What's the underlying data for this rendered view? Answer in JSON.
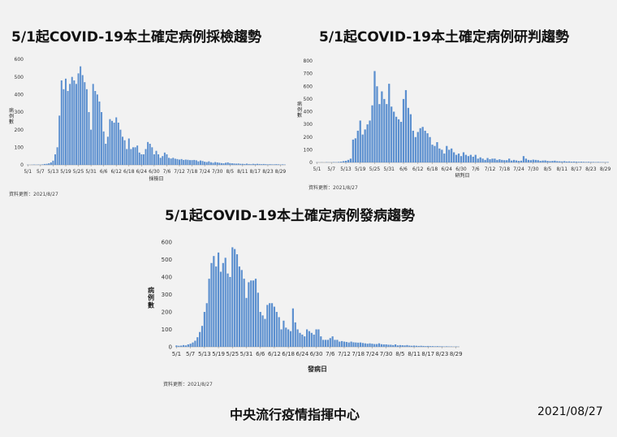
{
  "footer": {
    "organization": "中央流行疫情指揮中心",
    "date": "2021/08/27"
  },
  "chart_data": [
    {
      "type": "bar",
      "title": "5/1起COVID-19本土確定病例採檢趨勢",
      "xlabel": "採檢日",
      "ylabel": "病例數",
      "source": "資料更新：2021/8/27",
      "ylim": [
        0,
        600
      ],
      "yticks": [
        0,
        100,
        200,
        300,
        400,
        500,
        600
      ],
      "start_date": "2021-05-01",
      "tick_labels": [
        "5/1",
        "5/7",
        "5/13",
        "5/19",
        "5/25",
        "5/31",
        "6/6",
        "6/12",
        "6/18",
        "6/24",
        "6/30",
        "7/6",
        "7/12",
        "7/18",
        "7/24",
        "7/30",
        "8/5",
        "8/11",
        "8/17",
        "8/23",
        "8/29"
      ],
      "values": [
        1,
        0,
        1,
        2,
        1,
        2,
        1,
        3,
        5,
        6,
        9,
        14,
        24,
        60,
        100,
        280,
        480,
        430,
        490,
        420,
        460,
        500,
        480,
        460,
        520,
        560,
        510,
        470,
        430,
        300,
        200,
        460,
        420,
        400,
        360,
        300,
        190,
        120,
        160,
        260,
        250,
        240,
        270,
        240,
        200,
        160,
        140,
        90,
        150,
        90,
        100,
        100,
        110,
        70,
        60,
        60,
        90,
        130,
        120,
        100,
        60,
        80,
        60,
        40,
        50,
        70,
        60,
        40,
        36,
        40,
        35,
        33,
        30,
        33,
        28,
        30,
        29,
        27,
        27,
        28,
        26,
        20,
        25,
        22,
        18,
        16,
        20,
        15,
        12,
        16,
        14,
        12,
        10,
        9,
        12,
        14,
        10,
        9,
        8,
        7,
        8,
        6,
        6,
        5,
        7,
        5,
        4,
        6,
        5,
        6,
        5,
        4,
        5,
        4,
        3,
        4,
        3,
        3,
        4,
        3,
        2,
        3,
        2
      ]
    },
    {
      "type": "bar",
      "title": "5/1起COVID-19本土確定病例研判趨勢",
      "xlabel": "研判日",
      "ylabel": "病例數",
      "source": "資料更新：2021/8/27",
      "ylim": [
        0,
        800
      ],
      "yticks": [
        0,
        100,
        200,
        300,
        400,
        500,
        600,
        700,
        800
      ],
      "start_date": "2021-05-01",
      "tick_labels": [
        "5/1",
        "5/7",
        "5/13",
        "5/19",
        "5/25",
        "5/31",
        "6/6",
        "6/12",
        "6/18",
        "6/24",
        "6/30",
        "7/6",
        "7/12",
        "7/18",
        "7/24",
        "7/30",
        "8/5",
        "8/11",
        "8/17",
        "8/23",
        "8/29"
      ],
      "values": [
        1,
        0,
        1,
        0,
        2,
        1,
        1,
        3,
        2,
        4,
        6,
        10,
        13,
        20,
        30,
        180,
        190,
        250,
        330,
        220,
        260,
        300,
        330,
        450,
        720,
        600,
        460,
        560,
        500,
        460,
        620,
        440,
        400,
        360,
        340,
        320,
        500,
        570,
        430,
        380,
        250,
        200,
        240,
        270,
        280,
        250,
        230,
        200,
        140,
        130,
        160,
        110,
        100,
        70,
        130,
        100,
        110,
        80,
        60,
        70,
        50,
        80,
        60,
        50,
        60,
        45,
        60,
        30,
        40,
        30,
        20,
        35,
        25,
        30,
        30,
        20,
        25,
        20,
        18,
        18,
        30,
        15,
        20,
        16,
        12,
        14,
        50,
        30,
        20,
        18,
        22,
        20,
        18,
        12,
        15,
        16,
        12,
        10,
        12,
        14,
        10,
        9,
        8,
        10,
        7,
        8,
        6,
        7,
        6,
        5,
        6,
        5,
        4,
        5,
        4,
        4,
        3,
        4,
        3,
        3,
        2,
        3
      ]
    },
    {
      "type": "bar",
      "title": "5/1起COVID-19本土確定病例發病趨勢",
      "xlabel": "發病日",
      "ylabel": "病例數",
      "source": "資料更新：2021/8/27",
      "ylim": [
        0,
        600
      ],
      "yticks": [
        0,
        100,
        200,
        300,
        400,
        500,
        600
      ],
      "start_date": "2021-05-01",
      "tick_labels": [
        "5/1",
        "5/7",
        "5/13",
        "5/19",
        "5/25",
        "5/31",
        "6/6",
        "6/12",
        "6/18",
        "6/24",
        "6/30",
        "7/6",
        "7/12",
        "7/18",
        "7/24",
        "7/30",
        "8/5",
        "8/11",
        "8/17",
        "8/23",
        "8/29"
      ],
      "values": [
        8,
        6,
        7,
        10,
        8,
        14,
        18,
        25,
        35,
        55,
        85,
        120,
        200,
        250,
        390,
        480,
        520,
        460,
        540,
        430,
        480,
        510,
        420,
        400,
        570,
        560,
        530,
        460,
        440,
        390,
        280,
        370,
        380,
        380,
        390,
        310,
        200,
        180,
        160,
        240,
        250,
        250,
        230,
        200,
        170,
        100,
        150,
        110,
        100,
        90,
        220,
        140,
        100,
        80,
        70,
        60,
        100,
        90,
        80,
        70,
        100,
        100,
        60,
        40,
        40,
        40,
        50,
        60,
        40,
        40,
        30,
        33,
        30,
        28,
        25,
        30,
        26,
        25,
        24,
        25,
        22,
        20,
        18,
        20,
        18,
        16,
        16,
        20,
        15,
        14,
        14,
        12,
        12,
        10,
        14,
        8,
        10,
        9,
        8,
        10,
        7,
        6,
        7,
        6,
        5,
        6,
        5,
        4,
        5,
        4,
        4,
        3,
        4,
        3,
        3,
        2,
        3,
        2,
        2,
        1,
        2,
        1
      ]
    }
  ]
}
